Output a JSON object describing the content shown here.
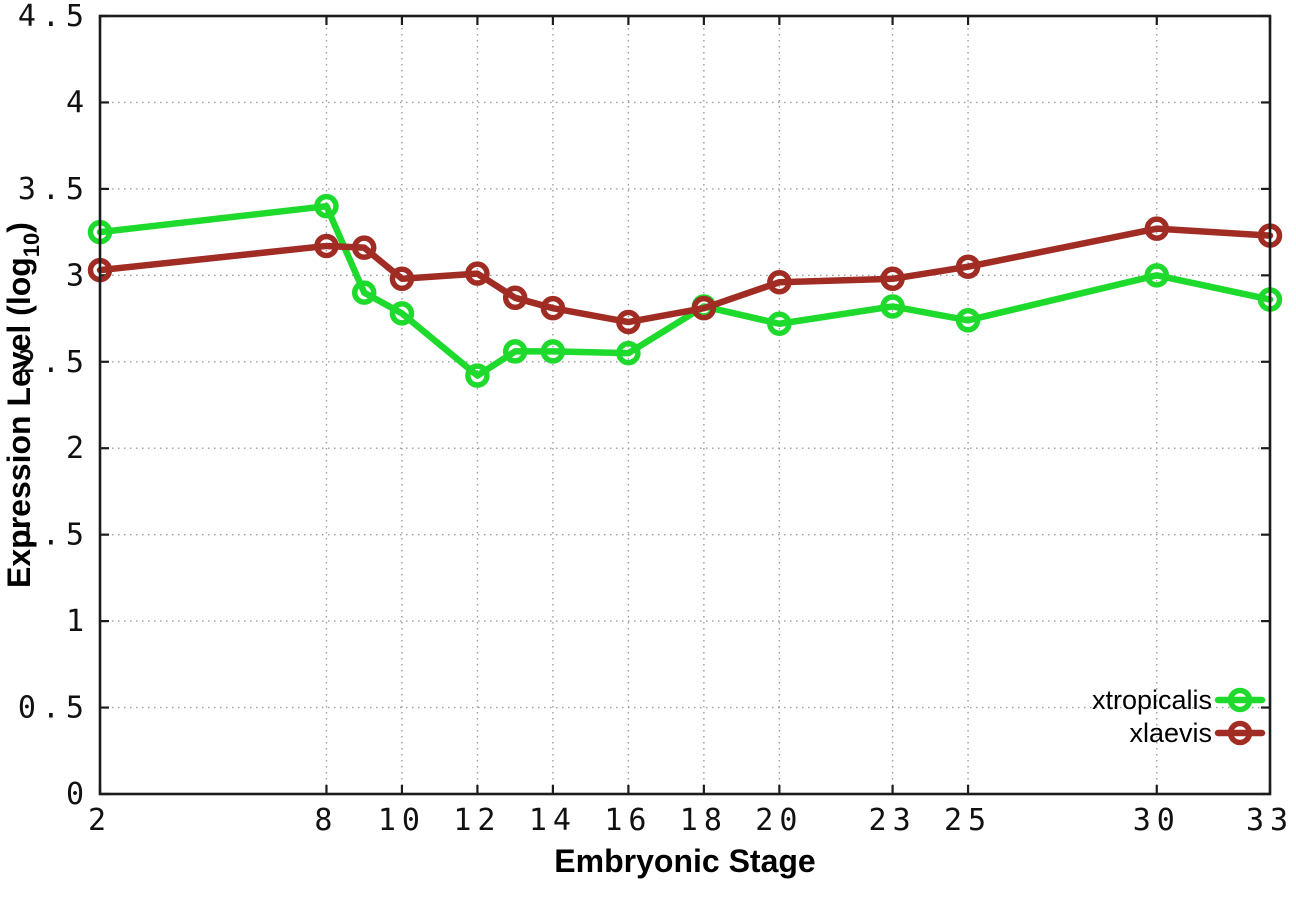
{
  "chart_data": {
    "type": "line",
    "xlabel": "Embryonic Stage",
    "ylabel": "Expression Level (log10)",
    "ylabel_parts": [
      "Expression Level (log",
      "10",
      ")"
    ],
    "x": [
      2,
      8,
      9,
      10,
      12,
      13,
      14,
      16,
      18,
      20,
      23,
      25,
      30,
      33
    ],
    "x_ticks": [
      2,
      8,
      10,
      12,
      14,
      16,
      18,
      20,
      23,
      25,
      30,
      33
    ],
    "y_ticks": [
      0,
      0.5,
      1,
      1.5,
      2,
      2.5,
      3,
      3.5,
      4,
      4.5
    ],
    "xlim": [
      2,
      33
    ],
    "ylim": [
      0,
      4.5
    ],
    "grid": "dotted",
    "marker": "open-circle",
    "legend_position": "inside-bottom-right",
    "series": [
      {
        "name": "xtropicalis",
        "color": "#1dda2c",
        "values": [
          3.25,
          3.4,
          2.9,
          2.78,
          2.42,
          2.56,
          2.56,
          2.55,
          2.82,
          2.72,
          2.82,
          2.74,
          3.0,
          2.86
        ]
      },
      {
        "name": "xlaevis",
        "color": "#a02c23",
        "values": [
          3.03,
          3.17,
          3.16,
          2.98,
          3.01,
          2.87,
          2.81,
          2.73,
          2.81,
          2.96,
          2.98,
          3.05,
          3.27,
          3.23
        ]
      }
    ]
  },
  "colors": {
    "background": "#ffffff",
    "grid": "#9c9c9c",
    "axis": "#1c1c1c",
    "text": "#000000"
  }
}
